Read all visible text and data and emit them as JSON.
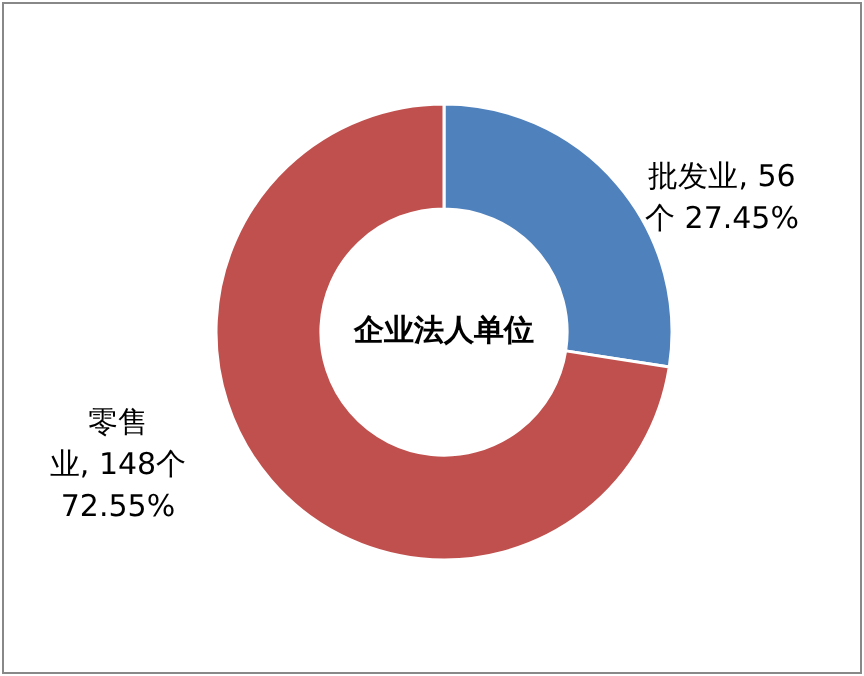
{
  "chart_data": {
    "type": "donut",
    "title": "企业法人单位",
    "categories": [
      "批发业",
      "零售业"
    ],
    "values": [
      56,
      148
    ],
    "colors": [
      "#4f81bd",
      "#c0504d"
    ],
    "value_labels": [
      "56个 27.45%",
      "148个 72.55%"
    ]
  }
}
